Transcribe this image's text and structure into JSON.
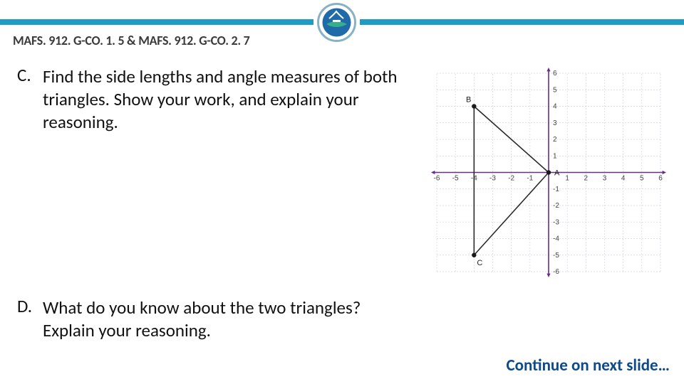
{
  "header": {
    "standard_code": "MAFS. 912. G-CO. 1. 5 & MAFS. 912. G-CO. 2. 7",
    "bar_color": "#1f9bc4",
    "logo_border": "#86b2c3",
    "logo_inner": "#1f6aa8"
  },
  "questions": {
    "c": {
      "label": "C.",
      "text": "Find the side lengths and angle measures of both triangles. Show your work, and explain your reasoning."
    },
    "d": {
      "label": "D.",
      "text": "What do you know about the two triangles? Explain your reasoning."
    }
  },
  "footer": {
    "continue": "Continue on next slide…",
    "color": "#0d4a8a"
  },
  "graph": {
    "type": "coordinate-grid",
    "xlim": [
      -6,
      6
    ],
    "ylim": [
      -6,
      6
    ],
    "xtick_step": 1,
    "ytick_step": 1,
    "x_labels": [
      -6,
      -5,
      -4,
      -3,
      -2,
      -1,
      1,
      2,
      3,
      4,
      5,
      6
    ],
    "y_labels": [
      -6,
      -5,
      -4,
      -3,
      -2,
      -1,
      1,
      2,
      3,
      4,
      5,
      6
    ],
    "grid_color": "#cdd6df",
    "axis_colors": {
      "x": "#6a2b8c",
      "y": "#6a2b8c"
    },
    "arrow_color": "#6a2b8c",
    "tri_stroke": "#2b2b2b",
    "tri_fill": "none",
    "point_dot": "#1a1a1a",
    "points": {
      "A": {
        "x": 0,
        "y": 0,
        "label": "A"
      },
      "B": {
        "x": -4,
        "y": 4,
        "label": "B"
      },
      "C": {
        "x": -4,
        "y": -5,
        "label": "C"
      }
    },
    "vertical_line": {
      "x": -4,
      "y1": 4,
      "y2": -5
    },
    "edges": [
      {
        "from": "A",
        "to": "B"
      },
      {
        "from": "A",
        "to": "C"
      }
    ]
  }
}
